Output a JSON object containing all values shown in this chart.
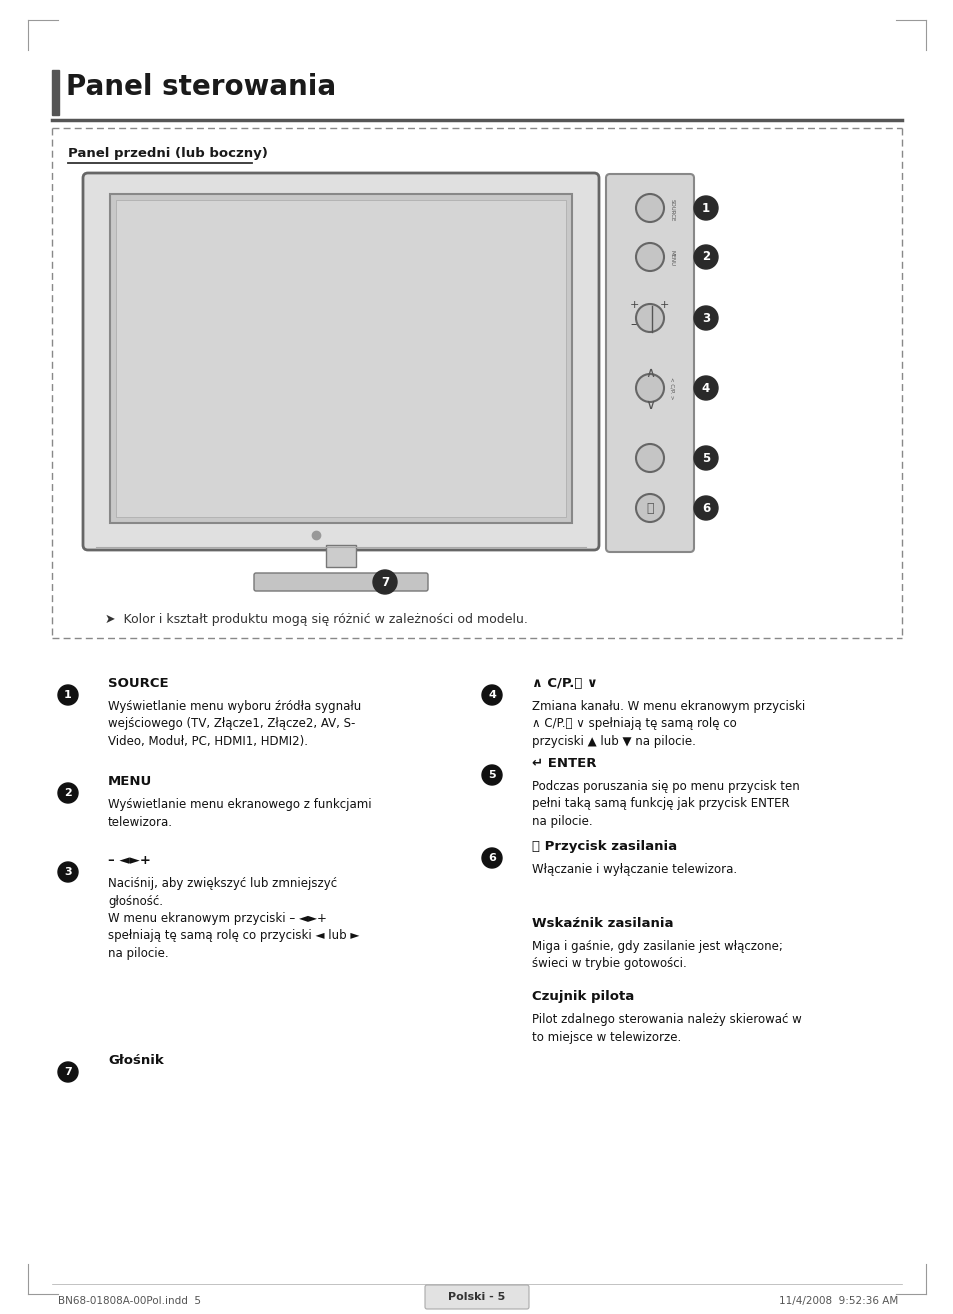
{
  "page_title": "Panel sterowania",
  "section_label": "Panel przedni (lub boczny)",
  "note": "➤  Kolor i kształt produktu mogą się różnić w zależności od modelu.",
  "footer_left": "BN68-01808A-00Pol.indd  5",
  "footer_center": "Polski - 5",
  "footer_right": "11/4/2008  9:52:36 AM",
  "left_items": [
    {
      "num": "1",
      "head": "SOURCE",
      "body": "Wyświetlanie menu wyboru źródła sygnału\nwejściowego (TV, Złącze1, Złącze2, AV, S-\nVideo, Moduł, PC, HDMI1, HDMI2)."
    },
    {
      "num": "2",
      "head": "MENU",
      "body": "Wyświetlanie menu ekranowego z funkcjami\ntelewizora."
    },
    {
      "num": "3",
      "head": "– ◄►+",
      "body": "Naciśnij, aby zwiększyć lub zmniejszyć\ngłośność.\nW menu ekranowym przyciski – ◄►+\nspełniają tę samą rolę co przyciski ◄ lub ►\nna pilocie."
    }
  ],
  "right_items": [
    {
      "num": "4",
      "head": "∧ C/P.⏻ ∨",
      "body": "Zmiana kanału. W menu ekranowym przyciski\n∧ C/P.⏻ ∨ spełniają tę samą rolę co\nprzyciski ▲ lub ▼ na pilocie."
    },
    {
      "num": "5",
      "head": "↵ ENTER",
      "body": "Podczas poruszania się po menu przycisk ten\npełni taką samą funkcję jak przycisk ENTER\nna pilocie."
    },
    {
      "num": "6",
      "head": "⏻ Przycisk zasilania",
      "body": "Włączanie i wyłączanie telewizora."
    },
    {
      "num": null,
      "head": "Wskaźnik zasilania",
      "body": "Miga i gaśnie, gdy zasilanie jest włączone;\nświeci w trybie gotowości."
    },
    {
      "num": null,
      "head": "Czujnik pilota",
      "body": "Pilot zdalnego sterowania należy skierować w\nto miejsce w telewizorze."
    }
  ],
  "item7_head": "Głośnik"
}
